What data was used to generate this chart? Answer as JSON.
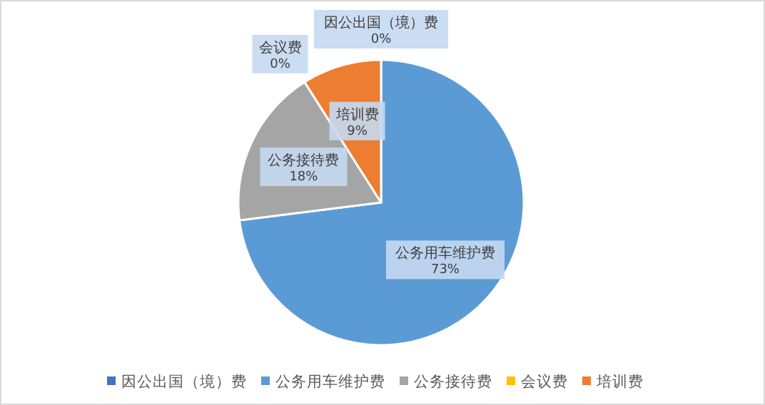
{
  "chart_data": {
    "type": "pie",
    "categories": [
      "因公出国（境）费",
      "公务用车维护费",
      "公务接待费",
      "会议费",
      "培训费"
    ],
    "values": [
      0,
      73,
      18,
      0,
      9
    ],
    "colors": [
      "#4472c4",
      "#5b9bd5",
      "#a5a5a5",
      "#ffc000",
      "#ed7d31"
    ],
    "value_labels": [
      "0%",
      "73%",
      "18%",
      "0%",
      "9%"
    ],
    "legend": "bottom"
  }
}
